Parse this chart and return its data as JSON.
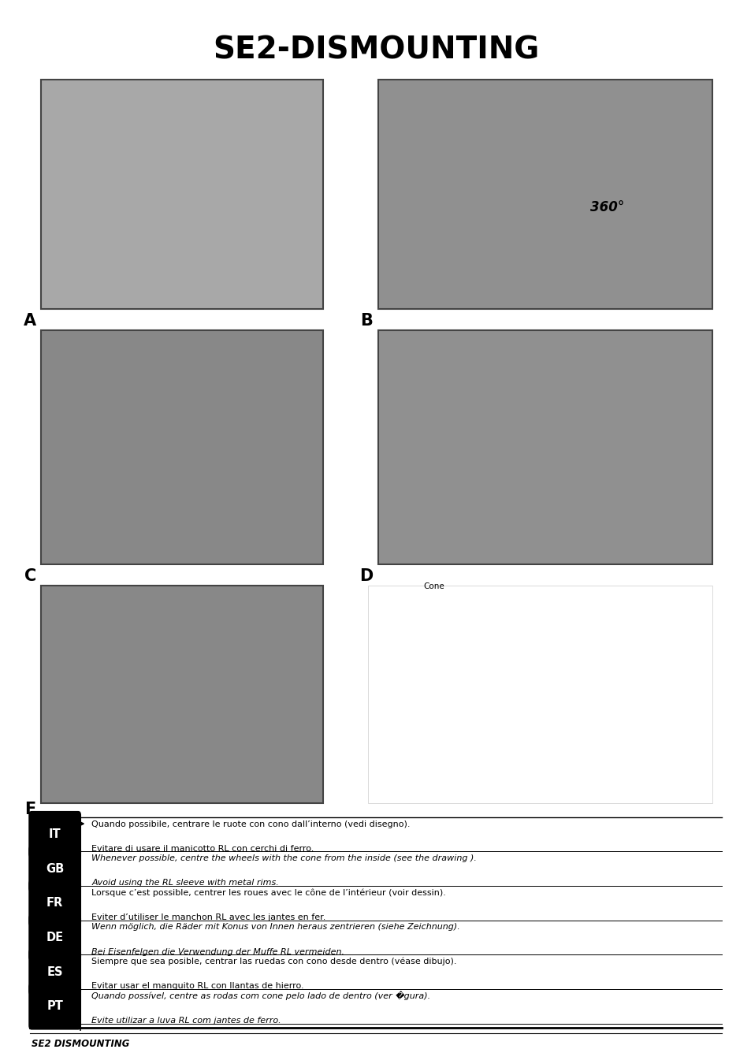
{
  "title": "SE2-DISMOUNTING",
  "title_fontsize": 28,
  "title_fontweight": "bold",
  "bg_color": "#ffffff",
  "footer_text": "SE2 DISMOUNTING",
  "languages": [
    {
      "code": "IT",
      "line1": "Quando possibile, centrare le ruote con cono dall’interno (vedi disegno).",
      "line2": "Evitare di usare il manicotto RL con cerchi di ferro.",
      "italic": false,
      "has_arrow": true
    },
    {
      "code": "GB",
      "line1": "Whenever possible, centre the wheels with the cone from the inside (see the drawing ).",
      "line2": "Avoid using the RL sleeve with metal rims.",
      "italic": true,
      "has_arrow": false
    },
    {
      "code": "FR",
      "line1": "Lorsque c’est possible, centrer les roues avec le cône de l’intérieur (voir dessin).",
      "line2": "Eviter d’utiliser le manchon RL avec les jantes en fer.",
      "italic": false,
      "has_arrow": false
    },
    {
      "code": "DE",
      "line1": "Wenn möglich, die Räder mit Konus von Innen heraus zentrieren (siehe Zeichnung).",
      "line2": "Bei Eisenfelgen die Verwendung der Muffe RL vermeiden.",
      "italic": true,
      "has_arrow": false
    },
    {
      "code": "ES",
      "line1": "Siempre que sea posible, centrar las ruedas con cono desde dentro (véase dibujo).",
      "line2": "Evitar usar el manguito RL con llantas de hierro.",
      "italic": false,
      "has_arrow": false
    },
    {
      "code": "PT",
      "line1": "Quando possível, centre as rodas com cone pelo lado de dentro (ver �gura).",
      "line2": "Evite utilizar a luva RL com jantes de ferro.",
      "italic": true,
      "has_arrow": false
    }
  ]
}
